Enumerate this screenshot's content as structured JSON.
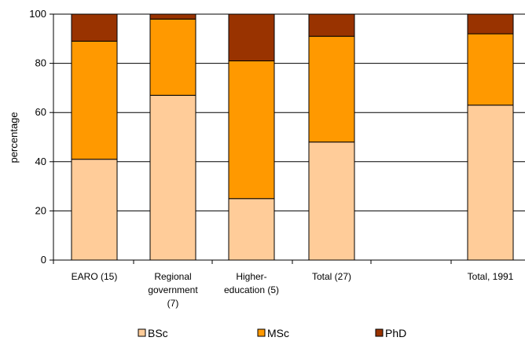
{
  "chart_data": {
    "type": "bar",
    "stacked": true,
    "categories": [
      [
        "EARO (15)"
      ],
      [
        "Regional",
        "government",
        "(7)"
      ],
      [
        "Higher-",
        "education (5)"
      ],
      [
        "Total (27)"
      ],
      [
        "Total, 1991"
      ]
    ],
    "series": [
      {
        "name": "BSc",
        "color": "#FFCC99",
        "values": [
          41,
          67,
          25,
          48,
          63
        ]
      },
      {
        "name": "MSc",
        "color": "#FF9900",
        "values": [
          48,
          31,
          56,
          43,
          29
        ]
      },
      {
        "name": "PhD",
        "color": "#993300",
        "values": [
          11,
          2,
          19,
          9,
          8
        ]
      }
    ],
    "ylabel": "percentage",
    "ylim": [
      0,
      100
    ],
    "yticks": [
      0,
      20,
      40,
      60,
      80,
      100
    ],
    "grid": true,
    "legend_position": "bottom"
  }
}
